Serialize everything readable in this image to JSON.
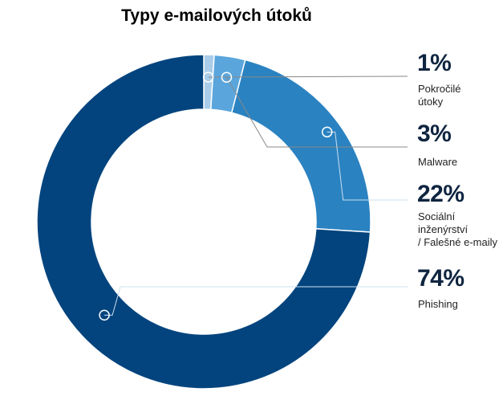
{
  "chart_data": {
    "type": "pie",
    "title": "Typy e-mailových útoků",
    "donut": true,
    "series": [
      {
        "name": "Pokročilé\nútoky",
        "value_label": "1%",
        "value": 1,
        "color": "#a9cde9"
      },
      {
        "name": "Malware",
        "value_label": "3%",
        "value": 3,
        "color": "#5aa6dc"
      },
      {
        "name": "Sociální\ninženýrství\n/ Falešné e-maily",
        "value_label": "22%",
        "value": 22,
        "color": "#2a82c1"
      },
      {
        "name": "Phishing",
        "value_label": "74%",
        "value": 74,
        "color": "#03447e"
      }
    ]
  }
}
